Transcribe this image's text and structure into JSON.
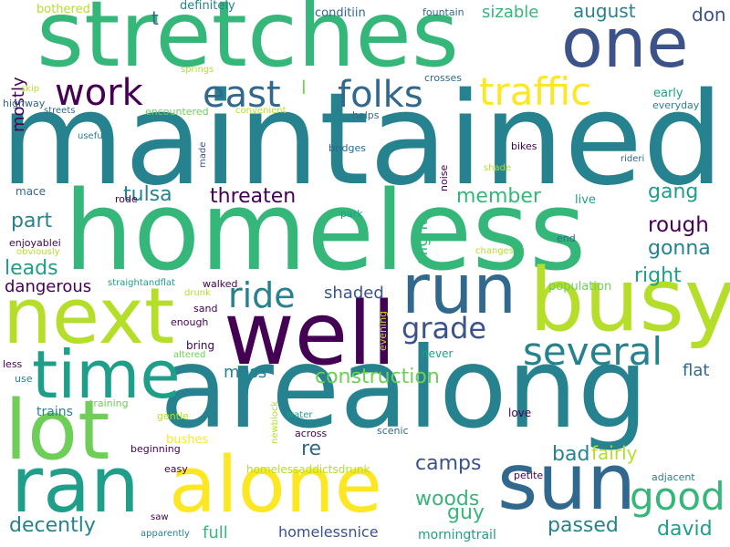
{
  "palette": {
    "dark_purple": "#440154",
    "indigo": "#3b528b",
    "blue": "#31688e",
    "teal": "#26828e",
    "green_teal": "#1f9e89",
    "green": "#35b779",
    "light_green": "#6ece58",
    "yellow_green": "#b5de2b",
    "yellow": "#fde725"
  },
  "words": [
    {
      "text": "maintained",
      "color": "#26828e"
    },
    {
      "text": "homeless",
      "color": "#35b779"
    },
    {
      "text": "stretches",
      "color": "#35b779"
    },
    {
      "text": "arealong",
      "color": "#26828e"
    },
    {
      "text": "well",
      "color": "#440154"
    },
    {
      "text": "busy",
      "color": "#b5de2b"
    },
    {
      "text": "next",
      "color": "#b5de2b"
    },
    {
      "text": "run",
      "color": "#31688e"
    },
    {
      "text": "one",
      "color": "#3b528b"
    },
    {
      "text": "sun",
      "color": "#31688e"
    },
    {
      "text": "ran",
      "color": "#1f9e89"
    },
    {
      "text": "alone",
      "color": "#fde725"
    },
    {
      "text": "time",
      "color": "#1f9e89"
    },
    {
      "text": "lot",
      "color": "#6ece58"
    },
    {
      "text": "good",
      "color": "#35b779"
    },
    {
      "text": "several",
      "color": "#26828e"
    },
    {
      "text": "traffic",
      "color": "#fde725"
    },
    {
      "text": "work",
      "color": "#440154"
    },
    {
      "text": "east",
      "color": "#31688e"
    },
    {
      "text": "folks",
      "color": "#31688e"
    },
    {
      "text": "ride",
      "color": "#26828e"
    },
    {
      "text": "grade",
      "color": "#3b528b"
    },
    {
      "text": "threaten",
      "color": "#440154"
    },
    {
      "text": "tulsa",
      "color": "#26828e"
    },
    {
      "text": "member",
      "color": "#35b779"
    },
    {
      "text": "gang",
      "color": "#1f9e89"
    },
    {
      "text": "rough",
      "color": "#440154"
    },
    {
      "text": "gonna",
      "color": "#26828e"
    },
    {
      "text": "right",
      "color": "#1f9e89"
    },
    {
      "text": "part",
      "color": "#26828e"
    },
    {
      "text": "leads",
      "color": "#1f9e89"
    },
    {
      "text": "dangerous",
      "color": "#440154"
    },
    {
      "text": "shaded",
      "color": "#3b528b"
    },
    {
      "text": "construction",
      "color": "#6ece58"
    },
    {
      "text": "moss",
      "color": "#26828e"
    },
    {
      "text": "re",
      "color": "#31688e"
    },
    {
      "text": "camps",
      "color": "#3b528b"
    },
    {
      "text": "woods",
      "color": "#35b779"
    },
    {
      "text": "guy",
      "color": "#35b779"
    },
    {
      "text": "bad",
      "color": "#26828e"
    },
    {
      "text": "fairly",
      "color": "#b5de2b"
    },
    {
      "text": "flat",
      "color": "#31688e"
    },
    {
      "text": "passed",
      "color": "#26828e"
    },
    {
      "text": "david",
      "color": "#1f9e89"
    },
    {
      "text": "decently",
      "color": "#26828e"
    },
    {
      "text": "full",
      "color": "#35b779"
    },
    {
      "text": "homelessnice",
      "color": "#3b528b"
    },
    {
      "text": "morningtrail",
      "color": "#1f9e89"
    },
    {
      "text": "august",
      "color": "#26828e"
    },
    {
      "text": "don",
      "color": "#3b528b"
    },
    {
      "text": "sizable",
      "color": "#35b779"
    },
    {
      "text": "mostly",
      "color": "#440154"
    },
    {
      "text": "t",
      "color": "#31688e"
    },
    {
      "text": "l",
      "color": "#6ece58"
    },
    {
      "text": "slight",
      "color": "#35b779"
    },
    {
      "text": "bothered",
      "color": "#b5de2b"
    },
    {
      "text": "definitely",
      "color": "#26828e"
    },
    {
      "text": "conditiin",
      "color": "#31688e"
    },
    {
      "text": "fountain",
      "color": "#31688e"
    },
    {
      "text": "early",
      "color": "#1f9e89"
    },
    {
      "text": "everyday",
      "color": "#26828e"
    },
    {
      "text": "helps",
      "color": "#31688e"
    },
    {
      "text": "crosses",
      "color": "#31688e"
    },
    {
      "text": "springs",
      "color": "#b5de2b"
    },
    {
      "text": "skip",
      "color": "#b5de2b"
    },
    {
      "text": "highway",
      "color": "#31688e"
    },
    {
      "text": "streets",
      "color": "#31688e"
    },
    {
      "text": "encountered",
      "color": "#6ece58"
    },
    {
      "text": "convenient",
      "color": "#b5de2b"
    },
    {
      "text": "useful",
      "color": "#26828e"
    },
    {
      "text": "made",
      "color": "#3b528b"
    },
    {
      "text": "bridges",
      "color": "#31688e"
    },
    {
      "text": "bikes",
      "color": "#440154"
    },
    {
      "text": "rideri",
      "color": "#31688e"
    },
    {
      "text": "shade",
      "color": "#b5de2b"
    },
    {
      "text": "mace",
      "color": "#31688e"
    },
    {
      "text": "rode",
      "color": "#440154"
    },
    {
      "text": "noise",
      "color": "#440154"
    },
    {
      "text": "live",
      "color": "#1f9e89"
    },
    {
      "text": "park",
      "color": "#1f9e89"
    },
    {
      "text": "enjoyablei",
      "color": "#440154"
    },
    {
      "text": "obviously",
      "color": "#b5de2b"
    },
    {
      "text": "changes",
      "color": "#b5de2b"
    },
    {
      "text": "end",
      "color": "#31688e"
    },
    {
      "text": "straightandflat",
      "color": "#1f9e89"
    },
    {
      "text": "walked",
      "color": "#440154"
    },
    {
      "text": "drunk",
      "color": "#b5de2b"
    },
    {
      "text": "population",
      "color": "#6ece58"
    },
    {
      "text": "sand",
      "color": "#440154"
    },
    {
      "text": "enough",
      "color": "#440154"
    },
    {
      "text": "evening",
      "color": "#b5de2b"
    },
    {
      "text": "bring",
      "color": "#440154"
    },
    {
      "text": "altered",
      "color": "#6ece58"
    },
    {
      "text": "never",
      "color": "#1f9e89"
    },
    {
      "text": "less",
      "color": "#440154"
    },
    {
      "text": "use",
      "color": "#26828e"
    },
    {
      "text": "training",
      "color": "#6ece58"
    },
    {
      "text": "trains",
      "color": "#26828e"
    },
    {
      "text": "gentle",
      "color": "#b5de2b"
    },
    {
      "text": "water",
      "color": "#1f9e89"
    },
    {
      "text": "newblock",
      "color": "#b5de2b"
    },
    {
      "text": "across",
      "color": "#440154"
    },
    {
      "text": "scenic",
      "color": "#31688e"
    },
    {
      "text": "love",
      "color": "#440154"
    },
    {
      "text": "bushes",
      "color": "#fde725"
    },
    {
      "text": "beginning",
      "color": "#440154"
    },
    {
      "text": "easy",
      "color": "#440154"
    },
    {
      "text": "homelessaddictsdrunk",
      "color": "#b5de2b"
    },
    {
      "text": "petite",
      "color": "#440154"
    },
    {
      "text": "adjacent",
      "color": "#26828e"
    },
    {
      "text": "saw",
      "color": "#440154"
    },
    {
      "text": "apparently",
      "color": "#26828e"
    }
  ]
}
